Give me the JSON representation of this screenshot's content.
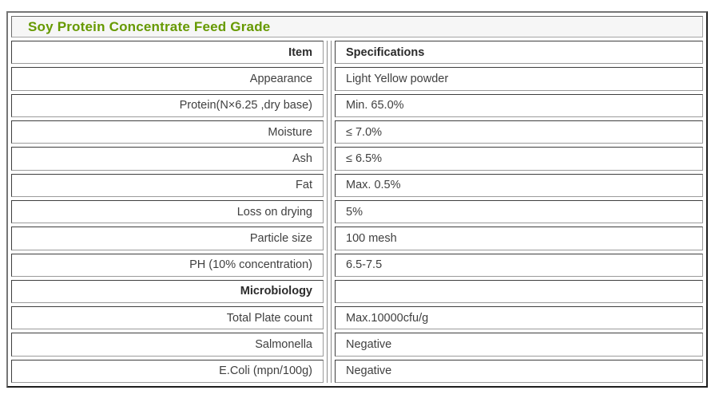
{
  "title": "Soy Protein Concentrate Feed Grade",
  "colors": {
    "title_green": "#669900",
    "title_background": "#f6f6f6",
    "frame_border_dark": "#1e1e1e",
    "cell_border_dark": "#3e3e3e",
    "cell_border_light": "#9b9b9b"
  },
  "table": {
    "header": {
      "item": "Item",
      "spec": "Specifications"
    },
    "rows": [
      {
        "item": "Appearance",
        "spec": "Light Yellow powder",
        "bold": false
      },
      {
        "item": "Protein(N×6.25 ,dry base)",
        "spec": "Min. 65.0%",
        "bold": false
      },
      {
        "item": "Moisture",
        "spec": "≤ 7.0%",
        "bold": false
      },
      {
        "item": "Ash",
        "spec": "≤ 6.5%",
        "bold": false
      },
      {
        "item": "Fat",
        "spec": "Max. 0.5%",
        "bold": false
      },
      {
        "item": "Loss on drying",
        "spec": "5%",
        "bold": false
      },
      {
        "item": "Particle size",
        "spec": "100 mesh",
        "bold": false
      },
      {
        "item": "PH (10% concentration)",
        "spec": "6.5-7.5",
        "bold": false
      },
      {
        "item": "Microbiology",
        "spec": "",
        "bold": true
      },
      {
        "item": "Total Plate count",
        "spec": "Max.10000cfu/g",
        "bold": false
      },
      {
        "item": "Salmonella",
        "spec": "Negative",
        "bold": false
      },
      {
        "item": "E.Coli (mpn/100g)",
        "spec": "Negative",
        "bold": false
      }
    ]
  }
}
